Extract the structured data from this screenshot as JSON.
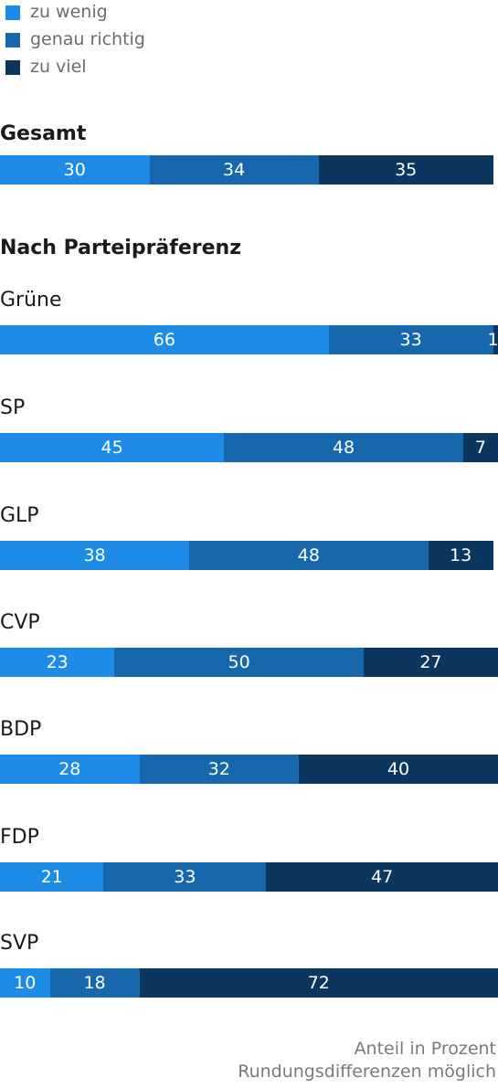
{
  "legend": [
    {
      "label": "zu wenig",
      "color": "#1e8ce6"
    },
    {
      "label": "genau richtig",
      "color": "#1767ad"
    },
    {
      "label": "zu viel",
      "color": "#0c365e"
    }
  ],
  "sections": {
    "total_title": "Gesamt",
    "party_title": "Nach Parteipräferenz"
  },
  "footnote": {
    "line1": "Anteil in Prozent",
    "line2": "Rundungsdifferenzen möglich"
  },
  "chart_data": {
    "type": "bar",
    "orientation": "horizontal",
    "stacked": true,
    "categories": [
      "Gesamt",
      "Grüne",
      "SP",
      "GLP",
      "CVP",
      "BDP",
      "FDP",
      "SVP"
    ],
    "series": [
      {
        "name": "zu wenig",
        "color": "#1e8ce6",
        "values": [
          30,
          66,
          45,
          38,
          23,
          28,
          21,
          10
        ]
      },
      {
        "name": "genau richtig",
        "color": "#1767ad",
        "values": [
          34,
          33,
          48,
          48,
          50,
          32,
          33,
          18
        ]
      },
      {
        "name": "zu viel",
        "color": "#0c365e",
        "values": [
          35,
          1,
          7,
          13,
          27,
          40,
          47,
          72
        ]
      }
    ],
    "xlim": [
      0,
      100
    ],
    "unit": "Anteil in Prozent",
    "legend_position": "top-left",
    "grid": false
  }
}
